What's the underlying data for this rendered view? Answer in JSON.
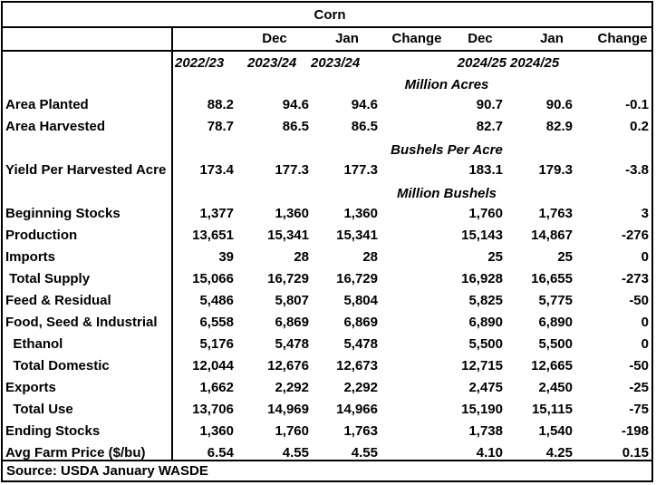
{
  "title": "Corn",
  "header": {
    "row1": [
      "",
      "Dec",
      "Jan",
      "Change",
      "Dec",
      "Jan",
      "Change"
    ],
    "row2": [
      "2022/23",
      "2023/24",
      "2023/24",
      "",
      "2024/25",
      "2024/25",
      ""
    ]
  },
  "sections": {
    "acres": "Million Acres",
    "yield": "Bushels Per Acre",
    "bushels": "Million Bushels"
  },
  "rows": [
    {
      "label": "Area Planted",
      "values": [
        "88.2",
        "94.6",
        "94.6",
        "",
        "90.7",
        "90.6",
        "-0.1"
      ]
    },
    {
      "label": "Area Harvested",
      "values": [
        "78.7",
        "86.5",
        "86.5",
        "",
        "82.7",
        "82.9",
        "0.2"
      ]
    },
    {
      "label": "Yield Per Harvested Acre",
      "values": [
        "173.4",
        "177.3",
        "177.3",
        "",
        "183.1",
        "179.3",
        "-3.8"
      ]
    },
    {
      "label": "Beginning Stocks",
      "values": [
        "1,377",
        "1,360",
        "1,360",
        "",
        "1,760",
        "1,763",
        "3"
      ]
    },
    {
      "label": "Production",
      "values": [
        "13,651",
        "15,341",
        "15,341",
        "",
        "15,143",
        "14,867",
        "-276"
      ]
    },
    {
      "label": "Imports",
      "values": [
        "39",
        "28",
        "28",
        "",
        "25",
        "25",
        "0"
      ]
    },
    {
      "label": " Total Supply",
      "values": [
        "15,066",
        "16,729",
        "16,729",
        "",
        "16,928",
        "16,655",
        "-273"
      ]
    },
    {
      "label": "Feed & Residual",
      "values": [
        "5,486",
        "5,807",
        "5,804",
        "",
        "5,825",
        "5,775",
        "-50"
      ]
    },
    {
      "label": "Food, Seed & Industrial",
      "values": [
        "6,558",
        "6,869",
        "6,869",
        "",
        "6,890",
        "6,890",
        "0"
      ]
    },
    {
      "label": "  Ethanol",
      "values": [
        "5,176",
        "5,478",
        "5,478",
        "",
        "5,500",
        "5,500",
        "0"
      ]
    },
    {
      "label": "  Total Domestic",
      "values": [
        "12,044",
        "12,676",
        "12,673",
        "",
        "12,715",
        "12,665",
        "-50"
      ]
    },
    {
      "label": "Exports",
      "values": [
        "1,662",
        "2,292",
        "2,292",
        "",
        "2,475",
        "2,450",
        "-25"
      ]
    },
    {
      "label": "  Total Use",
      "values": [
        "13,706",
        "14,969",
        "14,966",
        "",
        "15,190",
        "15,115",
        "-75"
      ]
    },
    {
      "label": "Ending Stocks",
      "values": [
        "1,360",
        "1,760",
        "1,763",
        "",
        "1,738",
        "1,540",
        "-198"
      ]
    },
    {
      "label": "Avg Farm Price ($/bu)",
      "values": [
        "6.54",
        "4.55",
        "4.55",
        "",
        "4.10",
        "4.25",
        "0.15"
      ]
    }
  ],
  "source": "Source: USDA January WASDE"
}
